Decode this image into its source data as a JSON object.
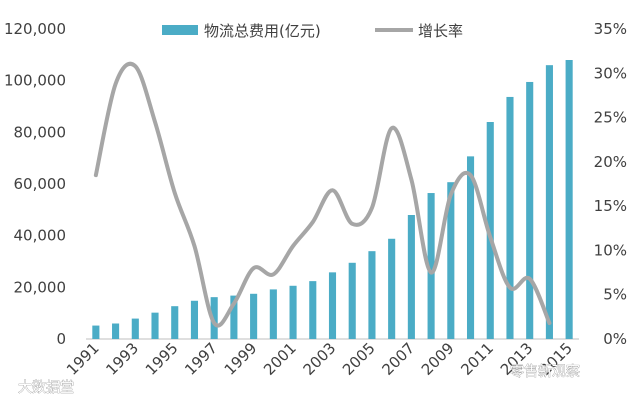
{
  "chart_data": {
    "type": "bar",
    "title": "",
    "xlabel": "",
    "ylabel": "",
    "categories": [
      "1991",
      "1992",
      "1993",
      "1994",
      "1995",
      "1996",
      "1997",
      "1998",
      "1999",
      "2000",
      "2001",
      "2002",
      "2003",
      "2004",
      "2005",
      "2006",
      "2007",
      "2008",
      "2009",
      "2010",
      "2011",
      "2012",
      "2013",
      "2014",
      "2015"
    ],
    "x_tick_labels": [
      "1991",
      "1993",
      "1995",
      "1997",
      "1999",
      "2001",
      "2003",
      "2005",
      "2007",
      "2009",
      "2011",
      "2013",
      "2015"
    ],
    "series": [
      {
        "name": "物流总费用(亿元)",
        "type": "bar",
        "axis": "left",
        "color": "#4bacc6",
        "values": [
          5200,
          6000,
          7900,
          10200,
          12700,
          14800,
          16200,
          16800,
          17500,
          19200,
          20600,
          22400,
          25800,
          29500,
          34000,
          38800,
          48000,
          56500,
          60700,
          70700,
          84000,
          93700,
          99500,
          106000,
          108000
        ]
      },
      {
        "name": "增长率",
        "type": "line",
        "axis": "right",
        "color": "#a6a6a6",
        "values": [
          18.5,
          28.8,
          30.8,
          24.5,
          16.5,
          10.5,
          1.8,
          4.0,
          8.0,
          7.3,
          10.5,
          13.2,
          16.8,
          13.0,
          14.8,
          23.8,
          18.0,
          7.5,
          16.3,
          18.5,
          11.5,
          5.8,
          6.8,
          1.8,
          null
        ]
      }
    ],
    "y_left": {
      "min": 0,
      "max": 120000,
      "ticks": [
        "0",
        "20,000",
        "40,000",
        "60,000",
        "80,000",
        "100,000",
        "120,000"
      ]
    },
    "y_right": {
      "min": 0,
      "max": 35,
      "ticks": [
        "0%",
        "5%",
        "10%",
        "15%",
        "20%",
        "25%",
        "30%",
        "35%"
      ]
    },
    "legend": {
      "position": "top",
      "items": [
        "物流总费用(亿元)",
        "增长率"
      ]
    }
  },
  "watermarks": [
    "大数据堂",
    "零售新观察"
  ]
}
